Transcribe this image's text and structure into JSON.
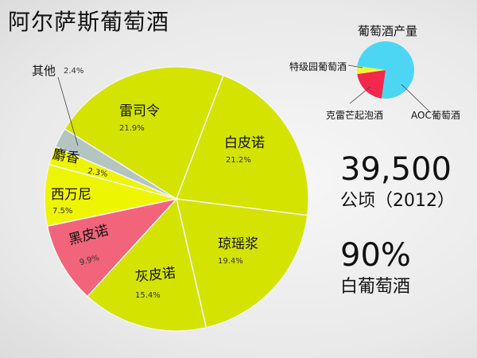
{
  "title": "阿尔萨斯葡萄酒",
  "chart_data": [
    {
      "type": "pie",
      "title": "",
      "categories": [
        "雷司令",
        "白皮诺",
        "琼瑶浆",
        "灰皮诺",
        "黑皮诺",
        "西万尼",
        "麝香",
        "其他"
      ],
      "values": [
        21.9,
        21.2,
        19.4,
        15.4,
        9.9,
        7.5,
        2.3,
        2.4
      ],
      "value_labels": [
        "21.9%",
        "21.2%",
        "19.4%",
        "15.4%",
        "9.9%",
        "7.5%",
        "2.3%",
        "2.4%"
      ],
      "colors": [
        "#d4e300",
        "#d4e300",
        "#d4e300",
        "#d4e300",
        "#f2647a",
        "#eef500",
        "#eef500",
        "#b3c4c1"
      ],
      "start_angle_deg": 302,
      "direction": "clockwise"
    },
    {
      "type": "pie",
      "title": "葡萄酒产量",
      "categories": [
        "AOC葡萄酒",
        "克雷芒起泡酒",
        "特级园葡萄酒"
      ],
      "values": [
        75,
        20.5,
        4.5
      ],
      "colors": [
        "#4dd6f4",
        "#f2284c",
        "#f0f53a"
      ],
      "start_angle_deg": 278,
      "direction": "clockwise"
    }
  ],
  "stats": [
    {
      "value": "39,500",
      "label": "公顷（2012）"
    },
    {
      "value": "90%",
      "label": "白葡萄酒"
    }
  ]
}
